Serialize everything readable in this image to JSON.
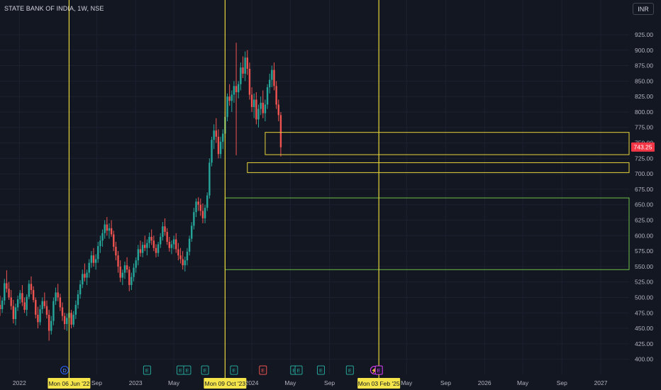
{
  "header": {
    "symbol": "STATE BANK OF INDIA, 1W, NSE",
    "currency": "INR"
  },
  "colors": {
    "background": "#131722",
    "grid": "#1c2130",
    "up": "#26a69a",
    "down": "#ef5350",
    "yellow_line": "#e8d53a",
    "green_line": "#6fbf4a",
    "axis_text": "#b2b5be",
    "price_label": "#f23645"
  },
  "chart_data": {
    "type": "candlestick",
    "y_axis": {
      "ylim": [
        395,
        933
      ],
      "ticks": [
        "925.00",
        "900.00",
        "875.00",
        "850.00",
        "825.00",
        "800.00",
        "775.00",
        "750.00",
        "725.00",
        "700.00",
        "675.00",
        "650.00",
        "625.00",
        "600.00",
        "575.00",
        "550.00",
        "525.00",
        "500.00",
        "475.00",
        "450.00",
        "425.00",
        "400.00"
      ],
      "tick_values": [
        925,
        900,
        875,
        850,
        825,
        800,
        775,
        750,
        725,
        700,
        675,
        650,
        625,
        600,
        575,
        550,
        525,
        500,
        475,
        450,
        425,
        400
      ]
    },
    "x_axis": {
      "range": [
        "2021-11-01",
        "2027-03-31"
      ],
      "ticks": [
        {
          "label": "2022",
          "date": "2022-01-01"
        },
        {
          "label": "Sep",
          "date": "2022-09-01"
        },
        {
          "label": "2023",
          "date": "2023-01-01"
        },
        {
          "label": "May",
          "date": "2023-05-01"
        },
        {
          "label": "2024",
          "date": "2024-01-01"
        },
        {
          "label": "May",
          "date": "2024-05-01"
        },
        {
          "label": "Sep",
          "date": "2024-09-01"
        },
        {
          "label": "May",
          "date": "2025-05-01"
        },
        {
          "label": "Sep",
          "date": "2025-09-01"
        },
        {
          "label": "2026",
          "date": "2026-01-01"
        },
        {
          "label": "May",
          "date": "2026-05-01"
        },
        {
          "label": "Sep",
          "date": "2026-09-01"
        },
        {
          "label": "2027",
          "date": "2027-01-01"
        }
      ]
    },
    "last_price": {
      "value": 743.25,
      "label": "743.25"
    },
    "vertical_lines": [
      {
        "date": "2022-06-06",
        "label": "Mon 06 Jun '22"
      },
      {
        "date": "2023-10-09",
        "label": "Mon 09 Oct '23"
      },
      {
        "date": "2025-02-03",
        "label": "Mon 03 Feb '25"
      }
    ],
    "rectangles": [
      {
        "color": "yellow",
        "x1": "2024-02-12",
        "x2": "2027-03-31",
        "y1": 767,
        "y2": 731
      },
      {
        "color": "yellow",
        "x1": "2023-12-18",
        "x2": "2027-03-31",
        "y1": 718,
        "y2": 702
      },
      {
        "color": "green",
        "x1": "2023-10-09",
        "x2": "2027-03-31",
        "y1": 661,
        "y2": 545
      }
    ],
    "event_markers": [
      {
        "date": "2022-05-23",
        "label": "D",
        "kind": "dividend"
      },
      {
        "date": "2023-02-06",
        "label": "E",
        "kind": "earnings-up"
      },
      {
        "date": "2023-05-22",
        "label": "E",
        "kind": "earnings-up"
      },
      {
        "date": "2023-06-12",
        "label": "E",
        "kind": "earnings-up"
      },
      {
        "date": "2023-08-07",
        "label": "E",
        "kind": "earnings-up"
      },
      {
        "date": "2023-11-06",
        "label": "E",
        "kind": "earnings-up"
      },
      {
        "date": "2024-02-05",
        "label": "E",
        "kind": "earnings-down"
      },
      {
        "date": "2024-05-13",
        "label": "E",
        "kind": "earnings-up"
      },
      {
        "date": "2024-05-27",
        "label": "E",
        "kind": "earnings-up"
      },
      {
        "date": "2024-08-05",
        "label": "E",
        "kind": "earnings-up"
      },
      {
        "date": "2024-11-04",
        "label": "E",
        "kind": "earnings-up"
      },
      {
        "date": "2025-01-20",
        "label": "⚡",
        "kind": "split"
      },
      {
        "date": "2025-02-03",
        "label": "E",
        "kind": "earnings-future"
      }
    ],
    "start_date": "2021-11-01",
    "candles": [
      [
        488,
        503,
        470,
        481
      ],
      [
        481,
        500,
        475,
        495
      ],
      [
        495,
        530,
        488,
        523
      ],
      [
        523,
        544,
        508,
        514
      ],
      [
        514,
        525,
        496,
        500
      ],
      [
        500,
        512,
        480,
        486
      ],
      [
        486,
        496,
        458,
        465
      ],
      [
        465,
        490,
        455,
        484
      ],
      [
        484,
        503,
        478,
        497
      ],
      [
        497,
        512,
        490,
        507
      ],
      [
        507,
        520,
        486,
        492
      ],
      [
        492,
        500,
        475,
        480
      ],
      [
        480,
        505,
        470,
        501
      ],
      [
        501,
        528,
        497,
        522
      ],
      [
        522,
        534,
        505,
        512
      ],
      [
        512,
        518,
        492,
        496
      ],
      [
        496,
        500,
        466,
        472
      ],
      [
        472,
        485,
        450,
        460
      ],
      [
        460,
        488,
        455,
        481
      ],
      [
        481,
        500,
        474,
        494
      ],
      [
        494,
        508,
        482,
        486
      ],
      [
        486,
        495,
        466,
        472
      ],
      [
        472,
        480,
        430,
        446
      ],
      [
        446,
        470,
        440,
        462
      ],
      [
        462,
        500,
        455,
        494
      ],
      [
        494,
        516,
        488,
        508
      ],
      [
        508,
        522,
        494,
        500
      ],
      [
        500,
        506,
        478,
        484
      ],
      [
        484,
        492,
        462,
        470
      ],
      [
        470,
        475,
        448,
        457
      ],
      [
        457,
        474,
        446,
        467
      ],
      [
        467,
        482,
        458,
        475
      ],
      [
        475,
        480,
        450,
        456
      ],
      [
        456,
        478,
        452,
        472
      ],
      [
        472,
        495,
        465,
        488
      ],
      [
        488,
        512,
        482,
        505
      ],
      [
        505,
        528,
        498,
        521
      ],
      [
        521,
        545,
        515,
        538
      ],
      [
        538,
        555,
        526,
        532
      ],
      [
        532,
        545,
        520,
        540
      ],
      [
        540,
        562,
        532,
        556
      ],
      [
        556,
        575,
        548,
        568
      ],
      [
        568,
        580,
        550,
        556
      ],
      [
        556,
        570,
        545,
        562
      ],
      [
        562,
        590,
        556,
        583
      ],
      [
        583,
        600,
        572,
        592
      ],
      [
        592,
        610,
        582,
        604
      ],
      [
        604,
        625,
        595,
        618
      ],
      [
        618,
        630,
        600,
        608
      ],
      [
        608,
        620,
        595,
        612
      ],
      [
        612,
        625,
        598,
        602
      ],
      [
        602,
        608,
        575,
        582
      ],
      [
        582,
        590,
        560,
        568
      ],
      [
        568,
        575,
        540,
        550
      ],
      [
        550,
        560,
        525,
        532
      ],
      [
        532,
        545,
        520,
        540
      ],
      [
        540,
        558,
        530,
        552
      ],
      [
        552,
        565,
        540,
        545
      ],
      [
        545,
        550,
        510,
        520
      ],
      [
        520,
        540,
        512,
        533
      ],
      [
        533,
        555,
        526,
        548
      ],
      [
        548,
        565,
        540,
        560
      ],
      [
        560,
        585,
        552,
        578
      ],
      [
        578,
        592,
        566,
        572
      ],
      [
        572,
        590,
        565,
        585
      ],
      [
        585,
        600,
        575,
        580
      ],
      [
        580,
        594,
        568,
        588
      ],
      [
        588,
        605,
        580,
        598
      ],
      [
        598,
        610,
        585,
        592
      ],
      [
        592,
        600,
        575,
        580
      ],
      [
        580,
        586,
        565,
        572
      ],
      [
        572,
        590,
        566,
        586
      ],
      [
        586,
        604,
        580,
        598
      ],
      [
        598,
        622,
        592,
        615
      ],
      [
        615,
        628,
        600,
        606
      ],
      [
        606,
        612,
        585,
        590
      ],
      [
        590,
        598,
        574,
        580
      ],
      [
        580,
        592,
        570,
        586
      ],
      [
        586,
        600,
        578,
        594
      ],
      [
        594,
        604,
        572,
        578
      ],
      [
        578,
        588,
        560,
        568
      ],
      [
        568,
        580,
        555,
        562
      ],
      [
        562,
        575,
        545,
        552
      ],
      [
        552,
        566,
        542,
        560
      ],
      [
        560,
        580,
        552,
        574
      ],
      [
        574,
        600,
        568,
        595
      ],
      [
        595,
        622,
        590,
        616
      ],
      [
        616,
        645,
        610,
        638
      ],
      [
        638,
        660,
        630,
        655
      ],
      [
        655,
        662,
        640,
        650
      ],
      [
        650,
        660,
        632,
        640
      ],
      [
        640,
        652,
        620,
        628
      ],
      [
        628,
        650,
        620,
        645
      ],
      [
        645,
        670,
        640,
        665
      ],
      [
        665,
        725,
        660,
        718
      ],
      [
        718,
        760,
        712,
        755
      ],
      [
        755,
        780,
        740,
        770
      ],
      [
        770,
        790,
        750,
        760
      ],
      [
        760,
        772,
        725,
        732
      ],
      [
        732,
        760,
        725,
        752
      ],
      [
        752,
        772,
        740,
        765
      ],
      [
        765,
        800,
        758,
        792
      ],
      [
        792,
        830,
        785,
        825
      ],
      [
        825,
        845,
        810,
        818
      ],
      [
        818,
        835,
        800,
        828
      ],
      [
        828,
        850,
        815,
        842
      ],
      [
        842,
        912,
        730,
        832
      ],
      [
        832,
        850,
        822,
        845
      ],
      [
        845,
        880,
        835,
        872
      ],
      [
        872,
        890,
        855,
        862
      ],
      [
        862,
        898,
        850,
        888
      ],
      [
        888,
        900,
        860,
        870
      ],
      [
        870,
        880,
        820,
        828
      ],
      [
        828,
        840,
        800,
        808
      ],
      [
        808,
        830,
        790,
        820
      ],
      [
        820,
        832,
        780,
        788
      ],
      [
        788,
        812,
        775,
        805
      ],
      [
        805,
        825,
        795,
        815
      ],
      [
        815,
        835,
        790,
        798
      ],
      [
        798,
        820,
        785,
        812
      ],
      [
        812,
        845,
        805,
        840
      ],
      [
        840,
        862,
        830,
        852
      ],
      [
        852,
        875,
        840,
        868
      ],
      [
        868,
        880,
        835,
        842
      ],
      [
        842,
        850,
        805,
        812
      ],
      [
        812,
        820,
        785,
        795
      ],
      [
        795,
        800,
        728,
        743
      ]
    ]
  }
}
